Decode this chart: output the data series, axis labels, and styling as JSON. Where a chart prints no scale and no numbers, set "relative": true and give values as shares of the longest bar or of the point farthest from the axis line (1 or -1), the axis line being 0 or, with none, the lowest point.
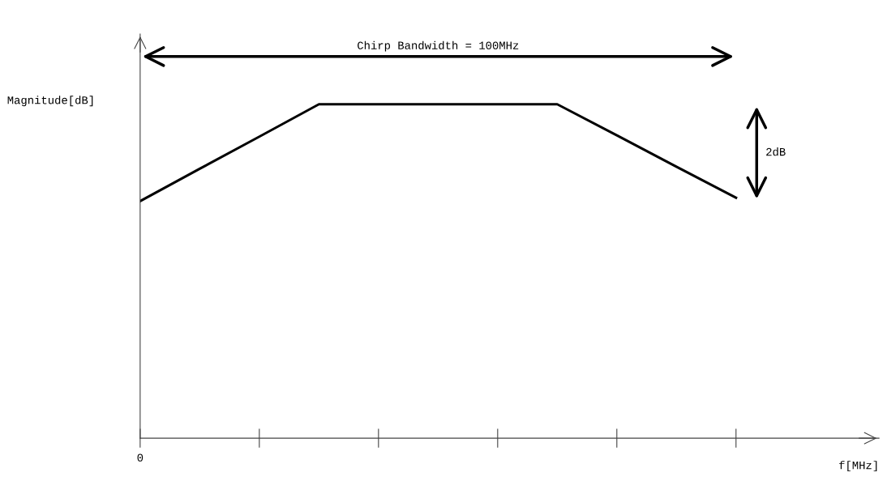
{
  "chart_data": {
    "type": "line",
    "ylabel": "Magnitude[dB]",
    "categories": [
      null,
      null,
      null,
      null,
      null,
      null,
      null,
      null,
      null,
      null,
      null
    ],
    "series": [
      {
        "color": "#000000",
        "values": [
          0.71,
          0.807,
          0.903,
          1,
          1,
          1,
          1,
          1,
          0.907,
          0.813,
          0.72
        ]
      }
    ],
    "relative": true,
    "annotations": [
      "Chirp Bandwidth = 100MHz",
      "2dB",
      {
        "text": "0"
      },
      "f[MHz]"
    ],
    "grid": false,
    "legend": false,
    "marker": "none",
    "line_style": "solid"
  }
}
